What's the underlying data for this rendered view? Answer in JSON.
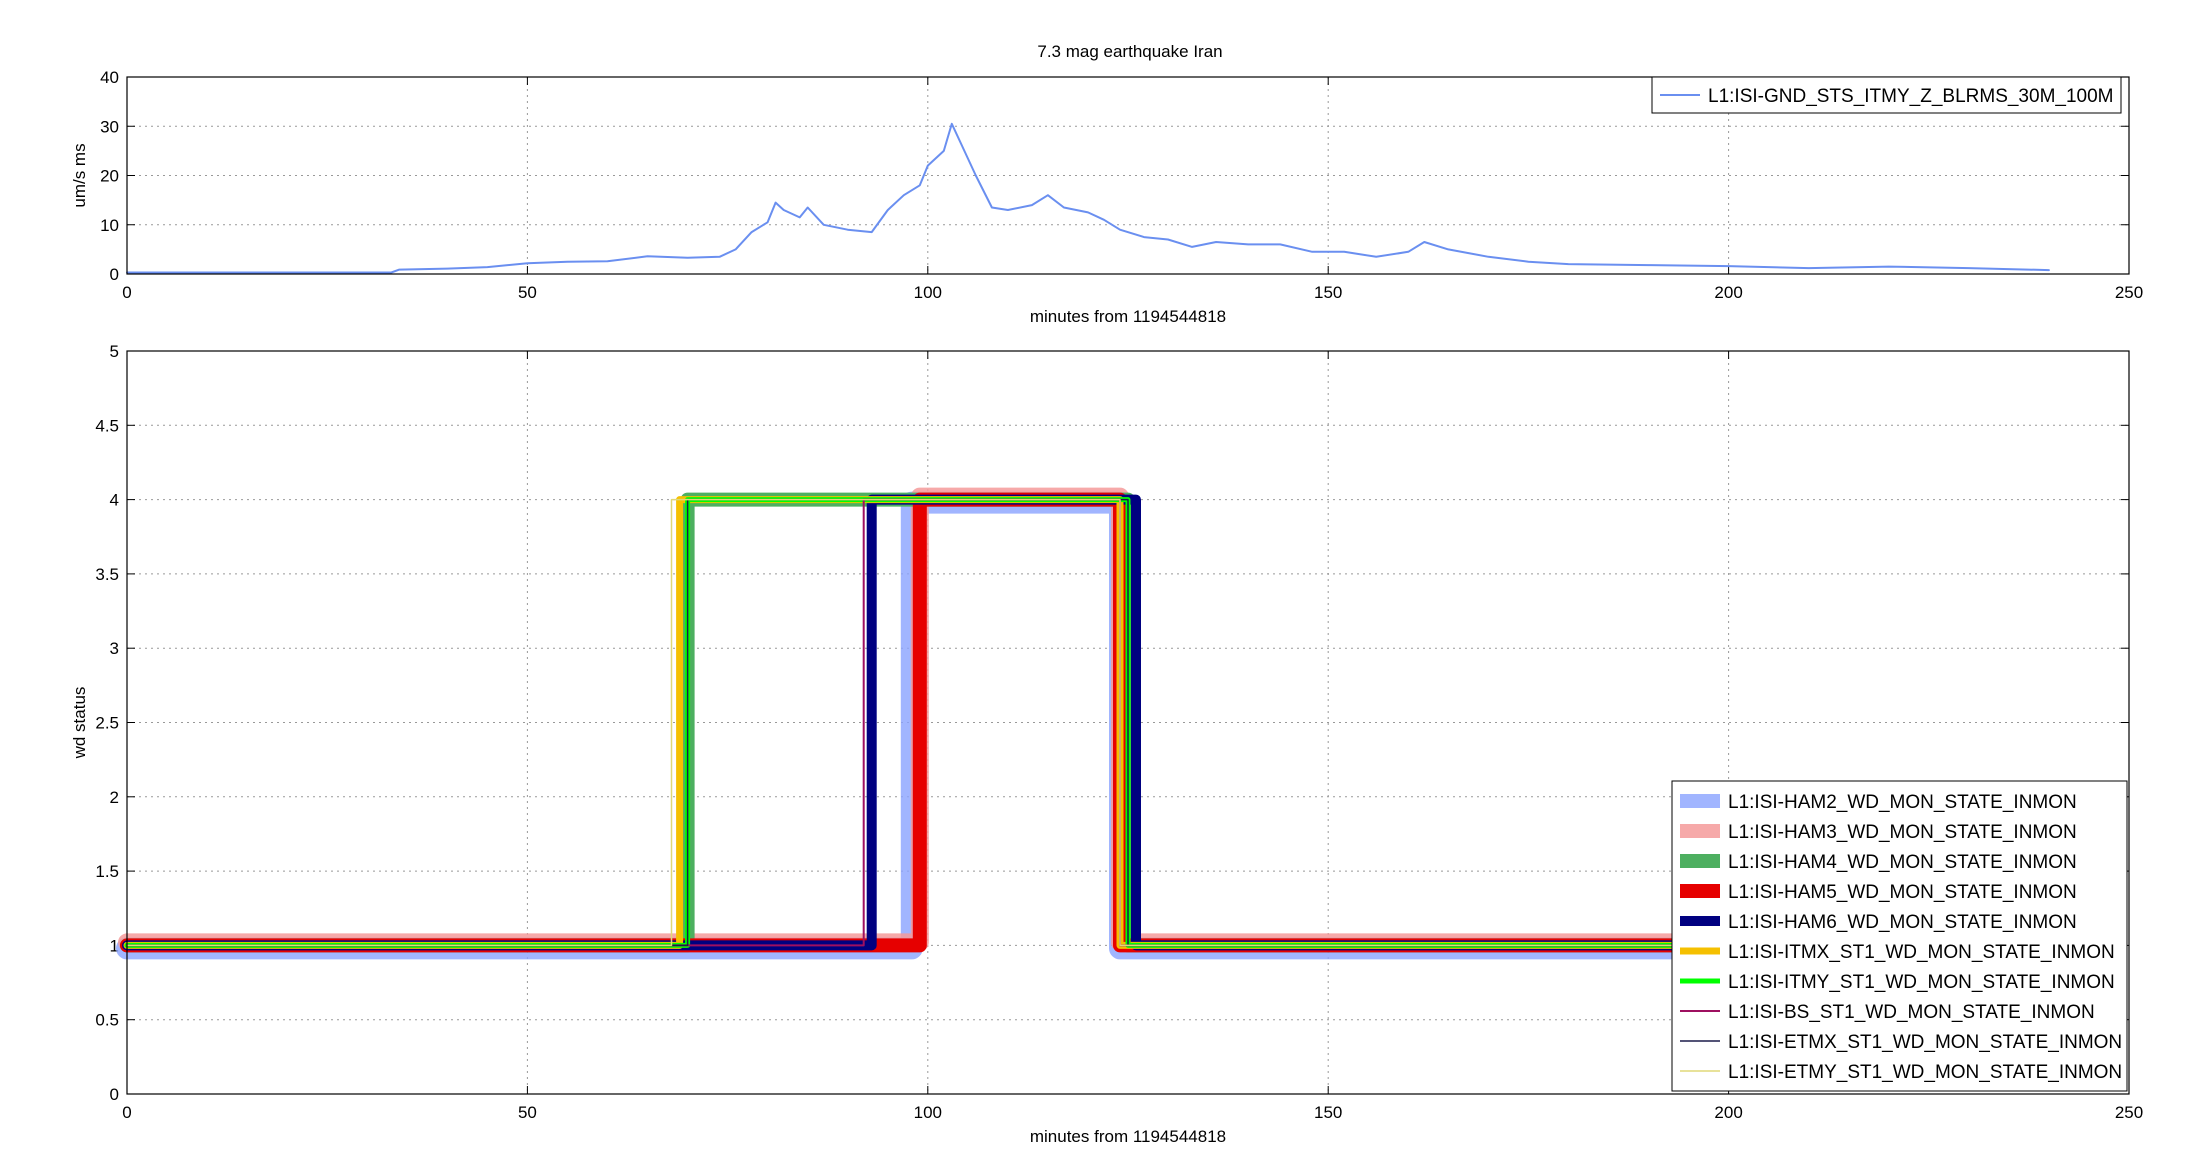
{
  "figure_title": "7.3 mag earthquake Iran",
  "chart_data": [
    {
      "type": "line",
      "title": "7.3 mag earthquake Iran",
      "xlabel": "minutes from 1194544818",
      "ylabel": "um/s ms",
      "xlim": [
        0,
        250
      ],
      "ylim": [
        0,
        40
      ],
      "xticks": [
        "0",
        "50",
        "100",
        "150",
        "200",
        "250"
      ],
      "yticks": [
        "0",
        "10",
        "20",
        "30",
        "40"
      ],
      "grid": true,
      "legend_position": "top-right",
      "series": [
        {
          "name": "L1:ISI-GND_STS_ITMY_Z_BLRMS_30M_100M",
          "color": "#6a8ff0",
          "points": [
            [
              0,
              0.3
            ],
            [
              33,
              0.3
            ],
            [
              34,
              0.9
            ],
            [
              40,
              1.1
            ],
            [
              45,
              1.4
            ],
            [
              50,
              2.2
            ],
            [
              55,
              2.5
            ],
            [
              60,
              2.6
            ],
            [
              65,
              3.6
            ],
            [
              70,
              3.3
            ],
            [
              74,
              3.5
            ],
            [
              76,
              5.0
            ],
            [
              78,
              8.5
            ],
            [
              80,
              10.5
            ],
            [
              81,
              14.5
            ],
            [
              82,
              13.0
            ],
            [
              84,
              11.5
            ],
            [
              85,
              13.5
            ],
            [
              87,
              10.0
            ],
            [
              90,
              9.0
            ],
            [
              93,
              8.5
            ],
            [
              95,
              13.0
            ],
            [
              97,
              16.0
            ],
            [
              99,
              18.0
            ],
            [
              100,
              22.0
            ],
            [
              102,
              25.0
            ],
            [
              103,
              30.5
            ],
            [
              104,
              27.0
            ],
            [
              106,
              20.0
            ],
            [
              108,
              13.5
            ],
            [
              110,
              13.0
            ],
            [
              113,
              14.0
            ],
            [
              115,
              16.0
            ],
            [
              117,
              13.5
            ],
            [
              120,
              12.5
            ],
            [
              122,
              11.0
            ],
            [
              124,
              9.0
            ],
            [
              127,
              7.5
            ],
            [
              130,
              7.0
            ],
            [
              133,
              5.5
            ],
            [
              136,
              6.5
            ],
            [
              140,
              6.0
            ],
            [
              144,
              6.0
            ],
            [
              148,
              4.5
            ],
            [
              152,
              4.5
            ],
            [
              156,
              3.5
            ],
            [
              160,
              4.5
            ],
            [
              162,
              6.5
            ],
            [
              165,
              5.0
            ],
            [
              170,
              3.5
            ],
            [
              175,
              2.5
            ],
            [
              180,
              2.0
            ],
            [
              190,
              1.8
            ],
            [
              200,
              1.6
            ],
            [
              210,
              1.2
            ],
            [
              220,
              1.5
            ],
            [
              230,
              1.2
            ],
            [
              240,
              0.8
            ]
          ]
        }
      ]
    },
    {
      "type": "line",
      "title": "",
      "xlabel": "minutes from 1194544818",
      "ylabel": "wd status",
      "xlim": [
        0,
        250
      ],
      "ylim": [
        0,
        5
      ],
      "xticks": [
        "0",
        "50",
        "100",
        "150",
        "200",
        "250"
      ],
      "yticks": [
        "0",
        "0.5",
        "1",
        "1.5",
        "2",
        "2.5",
        "3",
        "3.5",
        "4",
        "4.5",
        "5"
      ],
      "grid": true,
      "legend_position": "bottom-right",
      "series": [
        {
          "name": "L1:ISI-HAM2_WD_MON_STATE_INMON",
          "color": "#8aa2ff",
          "offset": -0.02,
          "points": [
            [
              0,
              1
            ],
            [
              98,
              1
            ],
            [
              98,
              4
            ],
            [
              124,
              4
            ],
            [
              124,
              1
            ],
            [
              240,
              1
            ]
          ]
        },
        {
          "name": "L1:ISI-HAM3_WD_MON_STATE_INMON",
          "color": "#f59a9a",
          "offset": 0.02,
          "points": [
            [
              0,
              1
            ],
            [
              99,
              1
            ],
            [
              99,
              4
            ],
            [
              124,
              4
            ],
            [
              124,
              1
            ],
            [
              240,
              1
            ]
          ]
        },
        {
          "name": "L1:ISI-HAM4_WD_MON_STATE_INMON",
          "color": "#4daf60",
          "offset": 0.0,
          "points": [
            [
              0,
              1
            ],
            [
              70,
              1
            ],
            [
              70,
              4
            ],
            [
              125,
              4
            ],
            [
              125,
              1
            ],
            [
              240,
              1
            ]
          ]
        },
        {
          "name": "L1:ISI-HAM5_WD_MON_STATE_INMON",
          "color": "#e60000",
          "offset": 0.0,
          "points": [
            [
              0,
              1
            ],
            [
              99,
              1
            ],
            [
              99,
              4
            ],
            [
              124,
              4
            ],
            [
              124,
              1
            ],
            [
              240,
              1
            ]
          ]
        },
        {
          "name": "L1:ISI-HAM6_WD_MON_STATE_INMON",
          "color": "#000080",
          "offset": 0.0,
          "points": [
            [
              0,
              1
            ],
            [
              93,
              1
            ],
            [
              93,
              4
            ],
            [
              126,
              4
            ],
            [
              126,
              1
            ],
            [
              240,
              1
            ]
          ]
        },
        {
          "name": "L1:ISI-ITMX_ST1_WD_MON_STATE_INMON",
          "color": "#f5c000",
          "offset": 0.0,
          "points": [
            [
              0,
              1
            ],
            [
              69,
              1
            ],
            [
              69,
              4
            ],
            [
              124,
              4
            ],
            [
              124,
              1
            ],
            [
              240,
              1
            ]
          ]
        },
        {
          "name": "L1:ISI-ITMY_ST1_WD_MON_STATE_INMON",
          "color": "#00ff00",
          "offset": 0.0,
          "points": [
            [
              0,
              1
            ],
            [
              70,
              1
            ],
            [
              70,
              4
            ],
            [
              125,
              4
            ],
            [
              125,
              1
            ],
            [
              240,
              1
            ]
          ]
        },
        {
          "name": "L1:ISI-BS_ST1_WD_MON_STATE_INMON",
          "color": "#9e1060",
          "offset": 0.0,
          "points": [
            [
              0,
              1
            ],
            [
              92,
              1
            ],
            [
              92,
              4
            ],
            [
              124,
              4
            ],
            [
              124,
              1
            ],
            [
              240,
              1
            ]
          ]
        },
        {
          "name": "L1:ISI-ETMX_ST1_WD_MON_STATE_INMON",
          "color": "#1c1c4a",
          "offset": 0.0,
          "points": [
            [
              0,
              1
            ],
            [
              70,
              1
            ],
            [
              70,
              4
            ],
            [
              125,
              4
            ],
            [
              125,
              1
            ],
            [
              240,
              1
            ]
          ]
        },
        {
          "name": "L1:ISI-ETMY_ST1_WD_MON_STATE_INMON",
          "color": "#e0d878",
          "offset": 0.0,
          "points": [
            [
              0,
              1
            ],
            [
              68,
              1
            ],
            [
              68,
              4
            ],
            [
              124,
              4
            ],
            [
              124,
              1
            ],
            [
              240,
              1
            ]
          ]
        }
      ]
    }
  ]
}
